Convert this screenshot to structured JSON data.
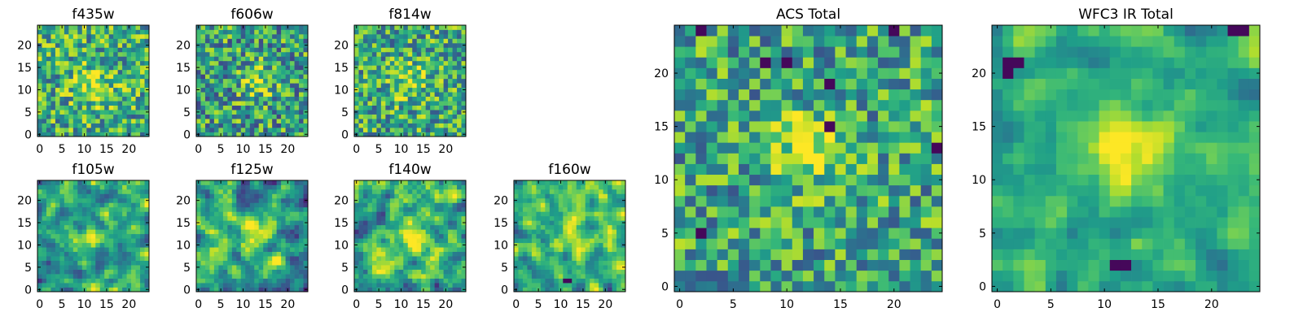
{
  "chart_data": {
    "type": "heatmap",
    "colormap": "viridis",
    "colors": {
      "viridis_stops": [
        "#440154",
        "#482878",
        "#3e4989",
        "#31688e",
        "#26828e",
        "#1f9e89",
        "#35b779",
        "#6ece58",
        "#b5de2b",
        "#fde725"
      ]
    },
    "grid": false,
    "panels": [
      {
        "id": "f435w",
        "title": "f435w",
        "nx": 25,
        "ny": 25,
        "xlim": [
          -0.5,
          24.5
        ],
        "ylim": [
          -0.5,
          24.5
        ],
        "xticks": [
          0,
          5,
          10,
          15,
          20
        ],
        "yticks": [
          0,
          5,
          10,
          15,
          20
        ],
        "seed": 11,
        "base": 0.62,
        "noise": 0.34,
        "smooth": 0,
        "peak": [
          12,
          11
        ],
        "peak_amp": 0.28,
        "peak_sigma": 3.0,
        "dark_spots": []
      },
      {
        "id": "f606w",
        "title": "f606w",
        "nx": 25,
        "ny": 25,
        "xlim": [
          -0.5,
          24.5
        ],
        "ylim": [
          -0.5,
          24.5
        ],
        "xticks": [
          0,
          5,
          10,
          15,
          20
        ],
        "yticks": [
          0,
          5,
          10,
          15,
          20
        ],
        "seed": 23,
        "base": 0.56,
        "noise": 0.36,
        "smooth": 0,
        "peak": [
          13,
          12
        ],
        "peak_amp": 0.34,
        "peak_sigma": 2.4,
        "dark_spots": []
      },
      {
        "id": "f814w",
        "title": "f814w",
        "nx": 25,
        "ny": 25,
        "xlim": [
          -0.5,
          24.5
        ],
        "ylim": [
          -0.5,
          24.5
        ],
        "xticks": [
          0,
          5,
          10,
          15,
          20
        ],
        "yticks": [
          0,
          5,
          10,
          15,
          20
        ],
        "seed": 37,
        "base": 0.6,
        "noise": 0.34,
        "smooth": 0,
        "peak": [
          12,
          12
        ],
        "peak_amp": 0.22,
        "peak_sigma": 3.0,
        "dark_spots": []
      },
      {
        "id": "f105w",
        "title": "f105w",
        "nx": 25,
        "ny": 25,
        "xlim": [
          -0.5,
          24.5
        ],
        "ylim": [
          -0.5,
          24.5
        ],
        "xticks": [
          0,
          5,
          10,
          15,
          20
        ],
        "yticks": [
          0,
          5,
          10,
          15,
          20
        ],
        "seed": 41,
        "base": 0.6,
        "noise": 0.46,
        "smooth": 1,
        "peak": [
          12,
          12
        ],
        "peak_amp": 0.3,
        "peak_sigma": 2.5,
        "dark_spots": []
      },
      {
        "id": "f125w",
        "title": "f125w",
        "nx": 25,
        "ny": 25,
        "xlim": [
          -0.5,
          24.5
        ],
        "ylim": [
          -0.5,
          24.5
        ],
        "xticks": [
          0,
          5,
          10,
          15,
          20
        ],
        "yticks": [
          0,
          5,
          10,
          15,
          20
        ],
        "seed": 53,
        "base": 0.56,
        "noise": 0.48,
        "smooth": 1,
        "peak": [
          13,
          12
        ],
        "peak_amp": 0.36,
        "peak_sigma": 2.4,
        "dark_spots": []
      },
      {
        "id": "f140w",
        "title": "f140w",
        "nx": 25,
        "ny": 25,
        "xlim": [
          -0.5,
          24.5
        ],
        "ylim": [
          -0.5,
          24.5
        ],
        "xticks": [
          0,
          5,
          10,
          15,
          20
        ],
        "yticks": [
          0,
          5,
          10,
          15,
          20
        ],
        "seed": 67,
        "base": 0.6,
        "noise": 0.46,
        "smooth": 1,
        "peak": [
          12,
          12
        ],
        "peak_amp": 0.3,
        "peak_sigma": 3.0,
        "dark_spots": []
      },
      {
        "id": "f160w",
        "title": "f160w",
        "nx": 25,
        "ny": 25,
        "xlim": [
          -0.5,
          24.5
        ],
        "ylim": [
          -0.5,
          24.5
        ],
        "xticks": [
          0,
          5,
          10,
          15,
          20
        ],
        "yticks": [
          0,
          5,
          10,
          15,
          20
        ],
        "seed": 79,
        "base": 0.62,
        "noise": 0.44,
        "smooth": 1,
        "peak": [
          13,
          13
        ],
        "peak_amp": 0.25,
        "peak_sigma": 3.2,
        "dark_spots": [
          [
            11,
            2
          ],
          [
            12,
            2
          ]
        ]
      },
      {
        "id": "acs-total",
        "title": "ACS Total",
        "nx": 25,
        "ny": 25,
        "xlim": [
          -0.5,
          24.5
        ],
        "ylim": [
          -0.5,
          24.5
        ],
        "xticks": [
          0,
          5,
          10,
          15,
          20
        ],
        "yticks": [
          0,
          5,
          10,
          15,
          20
        ],
        "seed": 97,
        "base": 0.58,
        "noise": 0.32,
        "smooth": 0,
        "peak": [
          12,
          13
        ],
        "peak_amp": 0.42,
        "peak_sigma": 2.2,
        "dark_spots": [
          [
            2,
            5
          ],
          [
            14,
            15
          ],
          [
            24,
            13
          ],
          [
            8,
            21
          ],
          [
            10,
            21
          ],
          [
            14,
            19
          ],
          [
            2,
            24
          ],
          [
            20,
            24
          ]
        ]
      },
      {
        "id": "wfc3-ir-total",
        "title": "WFC3 IR Total",
        "nx": 25,
        "ny": 25,
        "xlim": [
          -0.5,
          24.5
        ],
        "ylim": [
          -0.5,
          24.5
        ],
        "xticks": [
          0,
          5,
          10,
          15,
          20
        ],
        "yticks": [
          0,
          5,
          10,
          15,
          20
        ],
        "seed": 113,
        "base": 0.62,
        "noise": 0.26,
        "smooth": 1,
        "peak": [
          12,
          13
        ],
        "peak_amp": 0.4,
        "peak_sigma": 2.6,
        "dark_spots": [
          [
            1,
            21
          ],
          [
            2,
            21
          ],
          [
            1,
            20
          ],
          [
            11,
            2
          ],
          [
            12,
            2
          ],
          [
            22,
            24
          ],
          [
            23,
            24
          ]
        ]
      }
    ]
  }
}
